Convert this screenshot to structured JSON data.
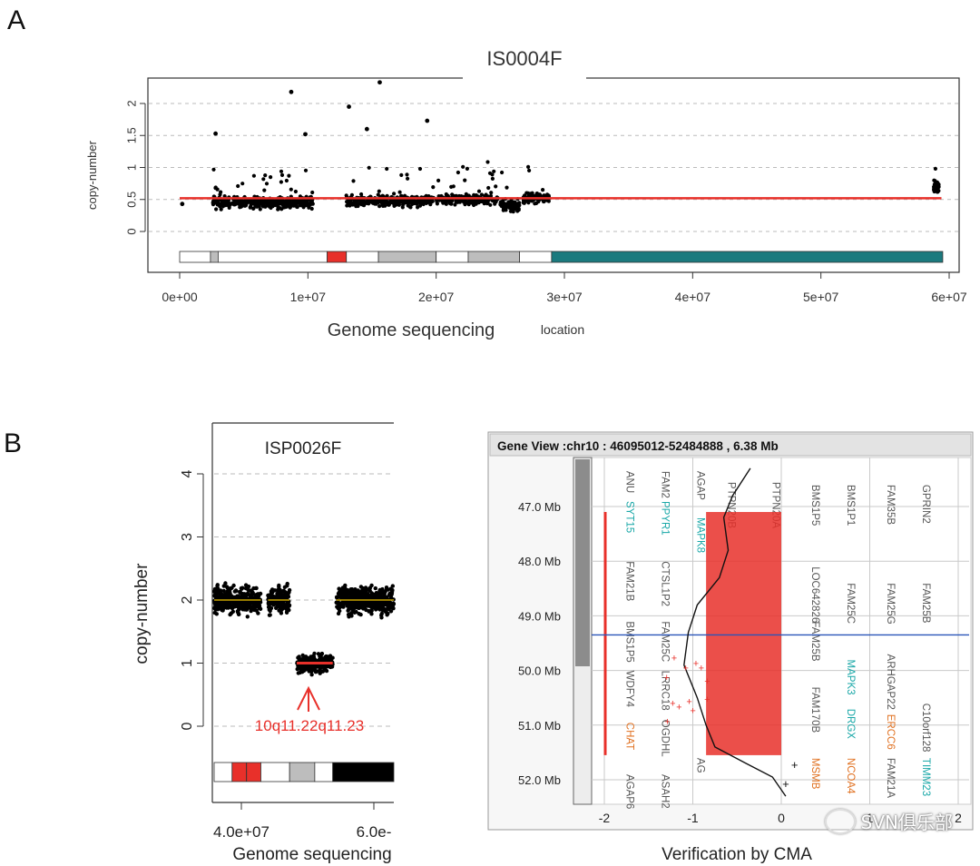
{
  "panel_labels": {
    "a": "A",
    "b": "B"
  },
  "watermark": {
    "text": "SVN俱乐部",
    "icon": "wechat-icon"
  },
  "colors": {
    "red": "#e8302a",
    "teal": "#1b7a7e",
    "black": "#000000",
    "gray": "#bdbdbd",
    "yellow": "#c8a400",
    "blue": "#2a55b8",
    "cyan": "#18a7a7",
    "orange": "#e07020"
  },
  "chart_data": [
    {
      "id": "A",
      "type": "scatter",
      "title": "IS0004F",
      "xlabel": "Genome sequencing",
      "xlabel_suffix": "location",
      "ylabel": "copy-number",
      "xlim": [
        0,
        60000000
      ],
      "ylim": [
        0,
        2.3
      ],
      "y_ticks": [
        "0",
        "0.5",
        "1",
        "1.5",
        "2"
      ],
      "x_ticks": [
        "0e+00",
        "1e+07",
        "2e+07",
        "3e+07",
        "4e+07",
        "5e+07",
        "6e+07"
      ],
      "grid": "horizontal-dashed",
      "baseline": 0.52,
      "segments": [
        {
          "start": 2600000,
          "end": 10500000,
          "mean": 0.45
        },
        {
          "start": 13000000,
          "end": 19800000,
          "mean": 0.48
        },
        {
          "start": 20000000,
          "end": 24800000,
          "mean": 0.5
        },
        {
          "start": 25000000,
          "end": 26500000,
          "mean": 0.4
        },
        {
          "start": 26800000,
          "end": 28800000,
          "mean": 0.52
        },
        {
          "start": 58800000,
          "end": 59200000,
          "mean": 0.7
        }
      ],
      "outliers": [
        {
          "x": 8700000,
          "y": 2.18
        },
        {
          "x": 15600000,
          "y": 2.33
        },
        {
          "x": 13200000,
          "y": 1.95
        },
        {
          "x": 2800000,
          "y": 1.53
        },
        {
          "x": 9800000,
          "y": 1.52
        },
        {
          "x": 19300000,
          "y": 1.73
        },
        {
          "x": 14600000,
          "y": 1.6
        },
        {
          "x": 200000,
          "y": 0.43
        }
      ],
      "ideogram": [
        {
          "start": 0,
          "end": 2400000,
          "color": "white"
        },
        {
          "start": 2400000,
          "end": 3000000,
          "color": "gray"
        },
        {
          "start": 3000000,
          "end": 11500000,
          "color": "white"
        },
        {
          "start": 11500000,
          "end": 13000000,
          "color": "red"
        },
        {
          "start": 13000000,
          "end": 15500000,
          "color": "white"
        },
        {
          "start": 15500000,
          "end": 20000000,
          "color": "gray"
        },
        {
          "start": 20000000,
          "end": 22500000,
          "color": "white"
        },
        {
          "start": 22500000,
          "end": 26500000,
          "color": "gray"
        },
        {
          "start": 26500000,
          "end": 29000000,
          "color": "white"
        },
        {
          "start": 29000000,
          "end": 59500000,
          "color": "teal"
        }
      ]
    },
    {
      "id": "B-left",
      "type": "scatter",
      "title": "ISP0026F",
      "xlabel": "Genome sequencing",
      "ylabel": "copy-number",
      "ylim": [
        0,
        4.2
      ],
      "y_ticks": [
        "0",
        "1",
        "2",
        "3",
        "4"
      ],
      "x_ticks": [
        "4.0e+07",
        "6.0e-"
      ],
      "grid": "horizontal-dashed",
      "baseline": 2.0,
      "segments": [
        {
          "start": 0.0,
          "end": 0.26,
          "mean": 2.0
        },
        {
          "start": 0.3,
          "end": 0.42,
          "mean": 2.0
        },
        {
          "start": 0.46,
          "end": 0.66,
          "mean": 1.0
        },
        {
          "start": 0.68,
          "end": 1.0,
          "mean": 2.0
        }
      ],
      "annotation": "10q11.22q11.23",
      "ideogram": [
        {
          "start": 0.0,
          "end": 0.1,
          "color": "white"
        },
        {
          "start": 0.1,
          "end": 0.26,
          "color": "red"
        },
        {
          "start": 0.26,
          "end": 0.42,
          "color": "white"
        },
        {
          "start": 0.42,
          "end": 0.56,
          "color": "gray"
        },
        {
          "start": 0.56,
          "end": 0.66,
          "color": "white"
        },
        {
          "start": 0.66,
          "end": 1.0,
          "color": "black"
        }
      ]
    },
    {
      "id": "B-right",
      "type": "line",
      "header": "Gene View :chr10 : 46095012-52484888 , 6.38 Mb",
      "xlabel": "Verification by CMA",
      "x_ticks": [
        "-2",
        "-1",
        "0",
        "1",
        "2"
      ],
      "xlim": [
        -2.3,
        2.1
      ],
      "y_ticks": [
        "47.0 Mb",
        "48.0 Mb",
        "49.0 Mb",
        "50.0 Mb",
        "51.0 Mb",
        "52.0 Mb"
      ],
      "ylim": [
        46.1,
        52.5
      ],
      "cursor_mb": 49.35,
      "deletion": {
        "x_from": -0.85,
        "x_to": 0.0,
        "start_mb": 47.1,
        "end_mb": 51.55
      },
      "trace": [
        {
          "x": -0.35,
          "y": 46.3
        },
        {
          "x": -0.55,
          "y": 46.8
        },
        {
          "x": -0.65,
          "y": 47.2
        },
        {
          "x": -0.6,
          "y": 47.8
        },
        {
          "x": -0.7,
          "y": 48.3
        },
        {
          "x": -0.95,
          "y": 48.8
        },
        {
          "x": -1.05,
          "y": 49.3
        },
        {
          "x": -1.1,
          "y": 49.9
        },
        {
          "x": -0.95,
          "y": 50.5
        },
        {
          "x": -0.85,
          "y": 51.0
        },
        {
          "x": -0.75,
          "y": 51.4
        },
        {
          "x": -0.4,
          "y": 51.7
        },
        {
          "x": -0.1,
          "y": 51.95
        },
        {
          "x": 0.05,
          "y": 52.3
        }
      ],
      "genes": [
        {
          "name": "SYT15",
          "color": "cyan",
          "x": -1.75,
          "y": 46.9
        },
        {
          "name": "ANU",
          "color": "gray",
          "x": -1.75,
          "y": 46.35
        },
        {
          "name": "PPYR1",
          "color": "cyan",
          "x": -1.35,
          "y": 46.9
        },
        {
          "name": "FAM2",
          "color": "gray",
          "x": -1.35,
          "y": 46.35
        },
        {
          "name": "AGAP",
          "color": "gray",
          "x": -0.95,
          "y": 46.35
        },
        {
          "name": "MAPK8",
          "color": "cyan",
          "x": -0.95,
          "y": 47.2
        },
        {
          "name": "PTPN20B",
          "color": "gray",
          "x": -0.6,
          "y": 46.55
        },
        {
          "name": "PTPN20A",
          "color": "gray",
          "x": -0.1,
          "y": 46.55
        },
        {
          "name": "BMS1P5",
          "color": "gray",
          "x": 0.35,
          "y": 46.6
        },
        {
          "name": "BMS1P1",
          "color": "gray",
          "x": 0.75,
          "y": 46.6
        },
        {
          "name": "FAM35B",
          "color": "gray",
          "x": 1.2,
          "y": 46.6
        },
        {
          "name": "GPRIN2",
          "color": "gray",
          "x": 1.6,
          "y": 46.6
        },
        {
          "name": "FAM21B",
          "color": "gray",
          "x": -1.75,
          "y": 48.0
        },
        {
          "name": "CTSL1P2",
          "color": "gray",
          "x": -1.35,
          "y": 48.0
        },
        {
          "name": "LOC642826",
          "color": "gray",
          "x": 0.35,
          "y": 48.1
        },
        {
          "name": "FAM25C",
          "color": "gray",
          "x": 0.75,
          "y": 48.4
        },
        {
          "name": "FAM25G",
          "color": "gray",
          "x": 1.2,
          "y": 48.4
        },
        {
          "name": "FAM25B",
          "color": "gray",
          "x": 1.6,
          "y": 48.4
        },
        {
          "name": "BMS1P5",
          "color": "gray",
          "x": -1.75,
          "y": 49.1
        },
        {
          "name": "FAM25C",
          "color": "gray",
          "x": -1.35,
          "y": 49.1
        },
        {
          "name": "FAM25B",
          "color": "gray",
          "x": 0.35,
          "y": 49.1
        },
        {
          "name": "MAPK3",
          "color": "cyan",
          "x": 0.75,
          "y": 49.8
        },
        {
          "name": "ARHGAP22",
          "color": "gray",
          "x": 1.2,
          "y": 49.7
        },
        {
          "name": "WDFY4",
          "color": "gray",
          "x": -1.75,
          "y": 50.0
        },
        {
          "name": "LRRC18",
          "color": "gray",
          "x": -1.35,
          "y": 50.0
        },
        {
          "name": "FAM170B",
          "color": "gray",
          "x": 0.35,
          "y": 50.3
        },
        {
          "name": "DRGX",
          "color": "cyan",
          "x": 0.75,
          "y": 50.7
        },
        {
          "name": "ERCC6",
          "color": "orange",
          "x": 1.2,
          "y": 50.8
        },
        {
          "name": "C10orf128",
          "color": "gray",
          "x": 1.6,
          "y": 50.6
        },
        {
          "name": "CHAT",
          "color": "orange",
          "x": -1.75,
          "y": 50.95
        },
        {
          "name": "OGDHL",
          "color": "gray",
          "x": -1.35,
          "y": 50.9
        },
        {
          "name": "MSMB",
          "color": "orange",
          "x": 0.35,
          "y": 51.6
        },
        {
          "name": "NCOA4",
          "color": "orange",
          "x": 0.75,
          "y": 51.6
        },
        {
          "name": "FAM21A",
          "color": "gray",
          "x": 1.2,
          "y": 51.6
        },
        {
          "name": "TIMM23",
          "color": "cyan",
          "x": 1.6,
          "y": 51.6
        },
        {
          "name": "AGAP6",
          "color": "gray",
          "x": -1.75,
          "y": 51.9
        },
        {
          "name": "ASAH2",
          "color": "gray",
          "x": -1.35,
          "y": 51.9
        },
        {
          "name": "AG",
          "color": "gray",
          "x": -0.95,
          "y": 51.6
        }
      ]
    }
  ]
}
